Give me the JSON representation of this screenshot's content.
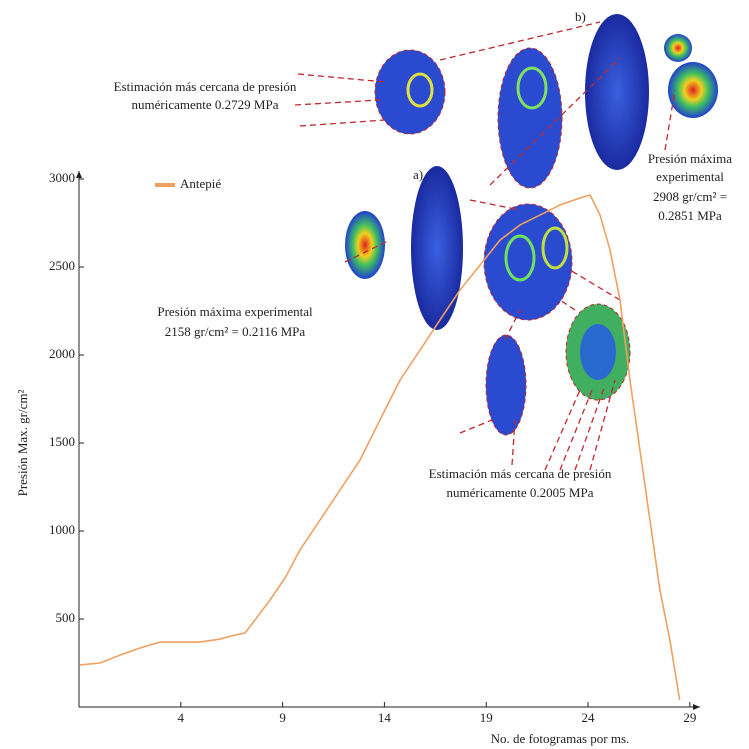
{
  "chart_data": {
    "type": "line",
    "xlabel": "No. de fotogramas por ms.",
    "ylabel": "Presión Max. gr/cm²",
    "xlim": [
      -1,
      29.5
    ],
    "ylim": [
      0,
      3000
    ],
    "xticks": [
      4,
      9,
      14,
      19,
      24,
      29
    ],
    "yticks": [
      500,
      1000,
      1500,
      2000,
      2500,
      3000
    ],
    "series": [
      {
        "name": "Antepié",
        "color": "#f0a060",
        "x": [
          -0.95,
          0.03,
          1.01,
          2.0,
          2.98,
          3.72,
          4.94,
          5.92,
          6.66,
          7.15,
          7.64,
          8.38,
          9.12,
          9.85,
          10.84,
          11.82,
          12.8,
          13.78,
          14.77,
          15.75,
          16.73,
          17.71,
          18.7,
          19.68,
          20.66,
          21.64,
          22.62,
          23.61,
          24.1,
          24.59,
          25.08,
          25.57,
          26.06,
          26.55,
          27.04,
          27.53,
          28.02,
          28.5
        ],
        "values": [
          239,
          250,
          295,
          335,
          369,
          369,
          369,
          386,
          409,
          420,
          494,
          608,
          733,
          892,
          1063,
          1233,
          1403,
          1631,
          1858,
          2028,
          2199,
          2369,
          2511,
          2653,
          2739,
          2795,
          2852,
          2892,
          2909,
          2795,
          2597,
          2313,
          1858,
          1460,
          1063,
          665,
          381,
          40
        ]
      }
    ],
    "annotations": [
      "a)",
      "b)",
      "Estimación más cercana de presión",
      "numéricamente 0.2729 MPa",
      "Presión máxima",
      "experimental",
      "2908 gr/cm² =",
      "0.2851 MPa",
      "Presión máxima experimental",
      "2158 gr/cm² = 0.2116 MPa",
      "Estimación más cercana de presión",
      "numéricamente 0.2005 MPa"
    ]
  }
}
